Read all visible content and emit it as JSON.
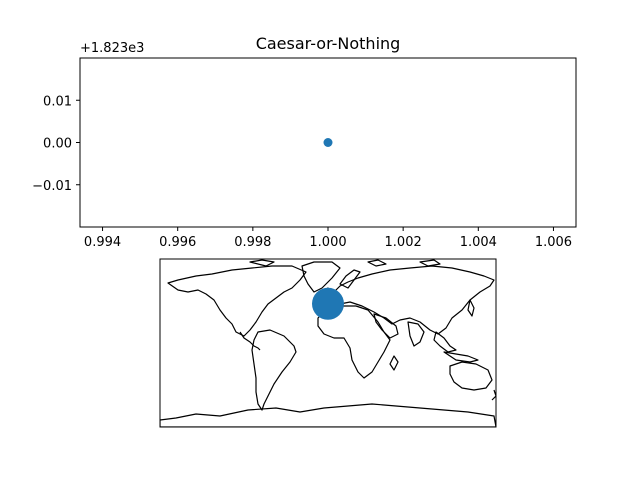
{
  "chart_data": [
    {
      "type": "scatter",
      "title": "Caesar-or-Nothing",
      "xlabel": "",
      "ylabel": "",
      "x_offset_label": "",
      "y_offset_label": "+1.823e3",
      "points": [
        {
          "x": 1.0,
          "y": 1823.0
        }
      ],
      "xlim": [
        0.9934,
        1.0066
      ],
      "ylim": [
        1822.98,
        1823.02
      ],
      "y_offset": 1823,
      "x_ticks": [
        0.994,
        0.996,
        0.998,
        1.0,
        1.002,
        1.004,
        1.006
      ],
      "x_tick_labels": [
        "0.994",
        "0.996",
        "0.998",
        "1.000",
        "1.002",
        "1.004",
        "1.006"
      ],
      "y_ticks": [
        0.01,
        0.0,
        -0.01
      ],
      "y_tick_labels": [
        "0.01",
        "0.00",
        "−0.01"
      ],
      "marker_color": "#1f77b4",
      "grid": false,
      "legend": "none"
    },
    {
      "type": "map-scatter",
      "projection": "equirectangular",
      "extent": {
        "lon": [
          -180,
          180
        ],
        "lat": [
          -90,
          90
        ]
      },
      "points": [
        {
          "lon": 0,
          "lat": 42
        }
      ],
      "marker_color": "#1f77b4",
      "coastlines": true
    }
  ]
}
